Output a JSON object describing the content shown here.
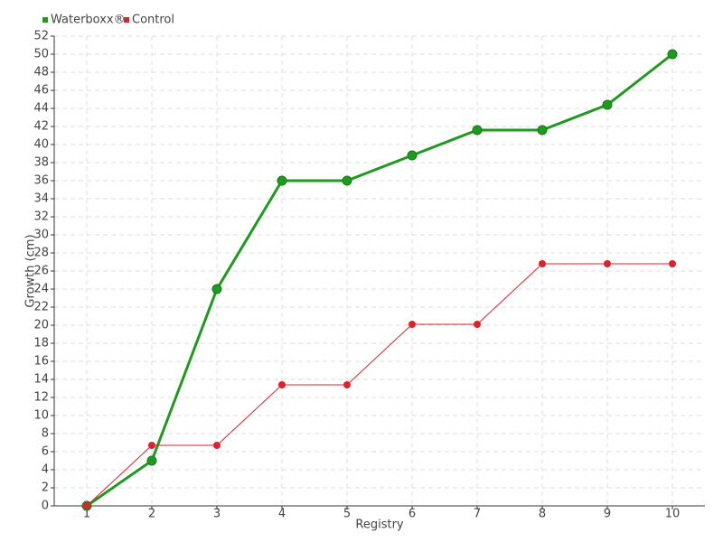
{
  "chart_data": {
    "type": "line",
    "x_label": "Registry",
    "y_label": "Growth (cm)",
    "categories": [
      "1",
      "2",
      "3",
      "4",
      "5",
      "6",
      "7",
      "8",
      "9",
      "10"
    ],
    "series": [
      {
        "name": "Waterboxx®",
        "color": "#1e9b1e",
        "values": [
          0,
          5,
          24,
          36,
          36,
          38.8,
          41.6,
          41.6,
          44.4,
          50
        ]
      },
      {
        "name": "Control",
        "color": "#e0202a",
        "values": [
          0,
          6.7,
          6.7,
          13.4,
          13.4,
          20.1,
          20.1,
          26.8,
          26.8,
          26.8
        ]
      }
    ],
    "ylim": [
      0,
      52
    ],
    "yticks": [
      0,
      2,
      4,
      6,
      8,
      10,
      12,
      14,
      16,
      18,
      20,
      22,
      24,
      26,
      28,
      30,
      32,
      34,
      36,
      38,
      40,
      42,
      44,
      46,
      48,
      50,
      52
    ],
    "grid": true,
    "legend": "top-left"
  }
}
